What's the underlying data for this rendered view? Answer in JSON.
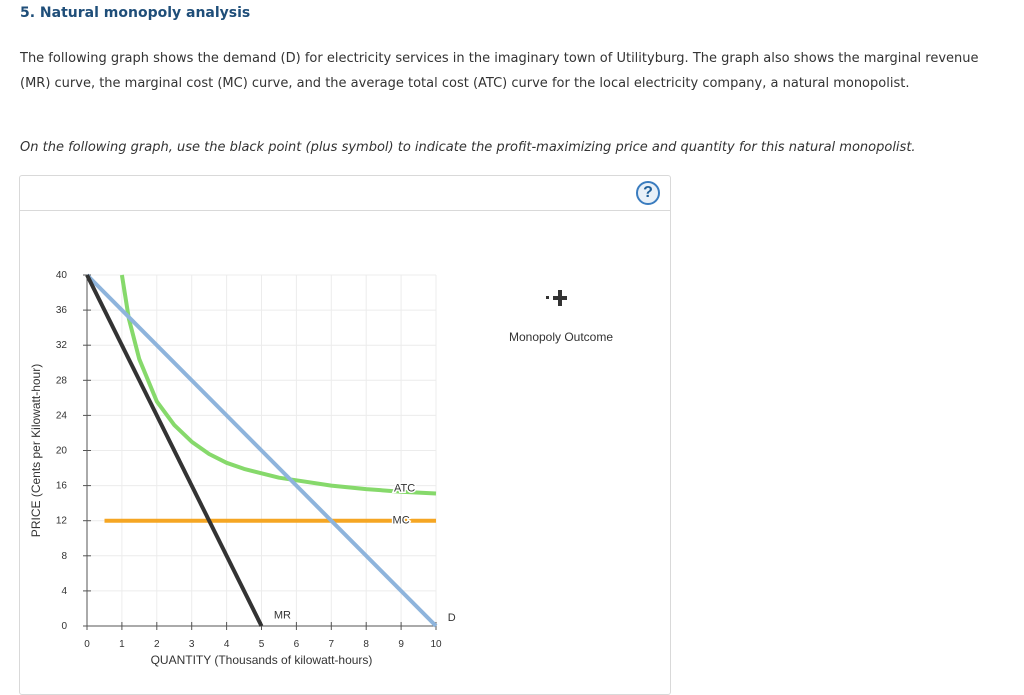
{
  "question": {
    "title": "5. Natural monopoly analysis",
    "paragraph": "The following graph shows the demand (D) for electricity services in the imaginary town of Utilityburg. The graph also shows the marginal revenue (MR) curve, the marginal cost (MC) curve, and the average total cost (ATC) curve for the local electricity company, a natural monopolist.",
    "instruction": "On the following graph, use the black point (plus symbol) to indicate the profit-maximizing price and quantity for this natural monopolist."
  },
  "panel": {
    "help_label": "?"
  },
  "legend": {
    "monopoly_outcome_label": "Monopoly Outcome",
    "marker_icon": "plus-marker-icon"
  },
  "chart_data": {
    "type": "line",
    "xlabel": "QUANTITY (Thousands of kilowatt-hours)",
    "ylabel": "PRICE (Cents per Kilowatt-hour)",
    "xlim": [
      0,
      10
    ],
    "ylim": [
      0,
      40
    ],
    "x_ticks": [
      0,
      1,
      2,
      3,
      4,
      5,
      6,
      7,
      8,
      9,
      10
    ],
    "y_ticks": [
      0,
      4,
      8,
      12,
      16,
      20,
      24,
      28,
      32,
      36,
      40
    ],
    "grid": true,
    "series": [
      {
        "name": "D",
        "color": "#8eb4dc",
        "x": [
          0,
          10
        ],
        "y": [
          40,
          0
        ]
      },
      {
        "name": "MR",
        "color": "#333333",
        "x": [
          0,
          5
        ],
        "y": [
          40,
          0
        ]
      },
      {
        "name": "MC",
        "color": "#f5a623",
        "x": [
          0.5,
          10
        ],
        "y": [
          12,
          12
        ]
      },
      {
        "name": "ATC",
        "color": "#86d96b",
        "x": [
          1,
          1.2,
          1.5,
          2,
          2.5,
          3,
          3.5,
          4,
          4.5,
          5,
          5.5,
          6,
          7,
          8,
          9,
          10
        ],
        "y": [
          40,
          35,
          30.4,
          25.6,
          22.9,
          21,
          19.6,
          18.6,
          17.9,
          17.4,
          16.9,
          16.6,
          16,
          15.6,
          15.3,
          15.1
        ]
      }
    ]
  }
}
